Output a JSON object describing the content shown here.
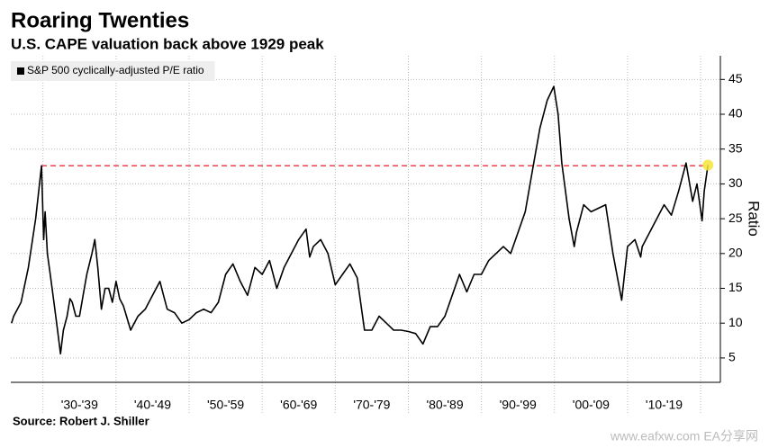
{
  "chart_data": {
    "type": "line",
    "title": "Roaring Twenties",
    "subtitle": "U.S. CAPE valuation back above 1929 peak",
    "source": "Source: Robert J. Shiller",
    "watermark": "www.eafxw.com EA分享网",
    "y_axis_label": "Ratio",
    "x": [
      1925.7,
      1926,
      1927,
      1928,
      1929,
      1929.8,
      1930.1,
      1930.3,
      1930.6,
      1931,
      1931.5,
      1932,
      1932.4,
      1932.8,
      1933.3,
      1933.7,
      1934,
      1934.5,
      1935,
      1935.5,
      1936,
      1936.7,
      1937.1,
      1937.5,
      1938,
      1938.5,
      1939,
      1939.5,
      1940,
      1940.5,
      1941,
      1942,
      1942.5,
      1943,
      1944,
      1945,
      1946,
      1946.5,
      1947,
      1948,
      1949,
      1950,
      1951,
      1952,
      1953,
      1954,
      1955,
      1956,
      1957,
      1958,
      1959,
      1960,
      1961,
      1962,
      1963,
      1964,
      1965,
      1966,
      1966.5,
      1967,
      1968,
      1969,
      1970,
      1971,
      1972,
      1973,
      1974,
      1975,
      1976,
      1977,
      1978,
      1979,
      1980,
      1981,
      1982,
      1983,
      1984,
      1985,
      1986,
      1987,
      1988,
      1989,
      1990,
      1991,
      1992,
      1993,
      1994,
      1995,
      1996,
      1997,
      1998,
      1999,
      1999.9,
      2000.5,
      2001,
      2002,
      2002.7,
      2003,
      2004,
      2005,
      2006,
      2007,
      2008,
      2009.2,
      2010,
      2011,
      2011.8,
      2012,
      2013,
      2014,
      2015,
      2016,
      2017,
      2018,
      2018.9,
      2019.5,
      2020.2,
      2020.5,
      2021
    ],
    "series": [
      {
        "name": "S&P 500 cyclically-adjusted P/E ratio",
        "color": "#000000",
        "values": [
          10,
          11,
          13,
          18,
          25,
          32.6,
          22,
          26,
          20,
          17,
          13,
          9,
          5.6,
          9,
          11,
          13.5,
          13,
          11,
          11,
          14,
          17,
          20,
          22,
          18,
          12,
          15,
          15,
          13,
          16,
          13.5,
          12.5,
          9,
          10,
          11,
          12,
          14,
          16,
          14,
          12,
          11.5,
          10,
          10.5,
          11.5,
          12,
          11.5,
          13,
          17,
          18.5,
          16,
          14,
          18,
          17,
          19,
          15,
          18,
          20,
          22,
          23.5,
          19.5,
          21,
          22,
          20,
          15.5,
          17,
          18.5,
          16.5,
          9,
          9,
          11,
          10,
          9,
          9,
          8.8,
          8.5,
          7,
          9.5,
          9.5,
          11,
          14,
          17,
          14.5,
          17,
          17,
          19,
          20,
          21,
          20,
          23,
          26,
          32,
          38,
          42,
          44,
          40,
          33,
          25,
          21,
          23,
          27,
          26,
          26.5,
          27,
          20,
          13.3,
          21,
          22,
          19.5,
          21,
          23,
          25,
          27,
          25.5,
          29,
          33,
          27.5,
          30,
          24.7,
          29,
          32.7
        ]
      }
    ],
    "reference_line": {
      "value": 32.6,
      "color": "#e8424c"
    },
    "highlight_color": "#f5e43a",
    "decades": [
      {
        "label": "'30-'39",
        "from": 1930,
        "to": 1940
      },
      {
        "label": "'40-'49",
        "from": 1940,
        "to": 1950
      },
      {
        "label": "'50-'59",
        "from": 1950,
        "to": 1960
      },
      {
        "label": "'60-'69",
        "from": 1960,
        "to": 1970
      },
      {
        "label": "'70-'79",
        "from": 1970,
        "to": 1980
      },
      {
        "label": "'80-'89",
        "from": 1980,
        "to": 1990
      },
      {
        "label": "'90-'99",
        "from": 1990,
        "to": 2000
      },
      {
        "label": "'00-'09",
        "from": 2000,
        "to": 2010
      },
      {
        "label": "'10-'19",
        "from": 2010,
        "to": 2020
      }
    ],
    "xlim": [
      1925.6,
      2022.7
    ],
    "ylim": [
      1.5,
      48.4
    ],
    "yticks": [
      5,
      10,
      15,
      20,
      25,
      30,
      35,
      40,
      45
    ],
    "grid": true
  }
}
